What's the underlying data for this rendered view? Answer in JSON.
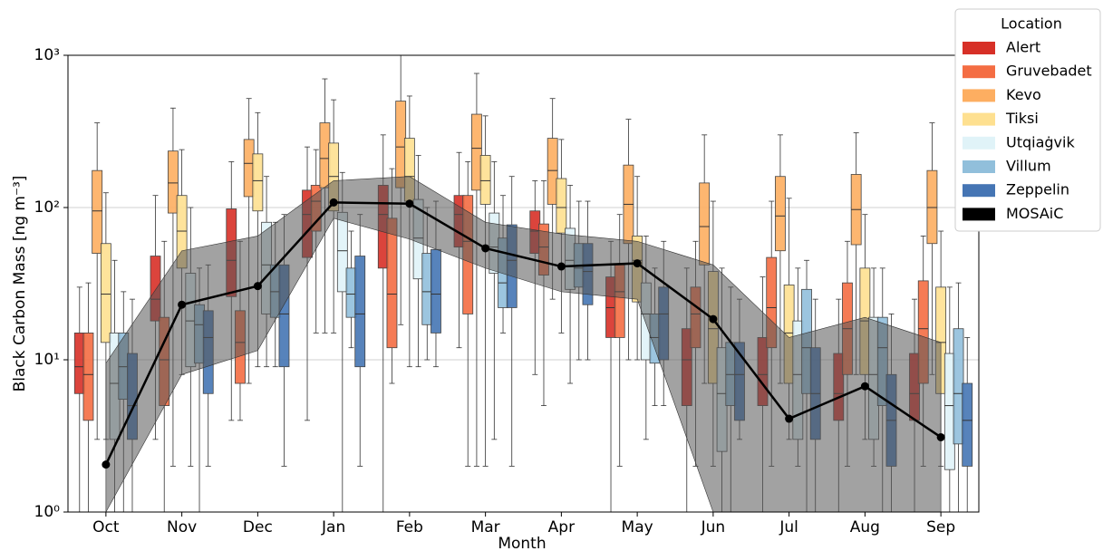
{
  "chart_data": {
    "type": "box",
    "xlabel": "Month",
    "ylabel": "Black Carbon Mass [ng m⁻³]",
    "categories": [
      "Oct",
      "Nov",
      "Dec",
      "Jan",
      "Feb",
      "Mar",
      "Apr",
      "May",
      "Jun",
      "Jul",
      "Aug",
      "Sep"
    ],
    "ylim": [
      1,
      1000
    ],
    "log_y": true,
    "grid": true,
    "yticks": [
      {
        "value": 1,
        "label": "10⁰"
      },
      {
        "value": 10,
        "label": "10¹"
      },
      {
        "value": 100,
        "label": "10²"
      },
      {
        "value": 1000,
        "label": "10³"
      }
    ],
    "legend_title": "Location",
    "legend": "outside-upper-right",
    "series": [
      {
        "name": "Alert",
        "type": "box",
        "color": "#d73027",
        "values": [
          [
            1,
            6,
            9,
            15,
            30
          ],
          [
            3,
            18,
            25,
            48,
            120
          ],
          [
            4,
            26,
            45,
            98,
            200
          ],
          [
            4,
            47,
            90,
            130,
            250
          ],
          [
            1,
            40,
            90,
            140,
            300
          ],
          [
            12,
            55,
            90,
            120,
            230
          ],
          [
            8,
            50,
            70,
            95,
            150
          ],
          [
            1,
            14,
            22,
            35,
            60
          ],
          [
            1,
            5,
            10,
            16,
            40
          ],
          [
            1,
            5,
            8,
            14,
            35
          ],
          [
            1,
            4,
            6,
            11,
            25
          ],
          [
            1,
            4,
            6,
            11,
            25
          ]
        ]
      },
      {
        "name": "Gruvebadet",
        "type": "box",
        "color": "#f46d43",
        "values": [
          [
            1,
            4,
            8,
            15,
            32
          ],
          [
            1,
            5,
            10,
            19,
            60
          ],
          [
            4,
            7,
            13,
            21,
            60
          ],
          [
            15,
            70,
            110,
            140,
            240
          ],
          [
            7,
            12,
            27,
            85,
            180
          ],
          [
            2,
            20,
            60,
            120,
            200
          ],
          [
            5,
            36,
            55,
            78,
            150
          ],
          [
            2,
            14,
            28,
            42,
            90
          ],
          [
            2,
            12,
            20,
            30,
            60
          ],
          [
            2,
            12,
            22,
            47,
            110
          ],
          [
            2,
            8,
            16,
            32,
            60
          ],
          [
            2,
            7,
            16,
            33,
            65
          ]
        ]
      },
      {
        "name": "Kevo",
        "type": "box",
        "color": "#fdae61",
        "values": [
          [
            3,
            50,
            95,
            175,
            360
          ],
          [
            2,
            92,
            145,
            235,
            450
          ],
          [
            7,
            118,
            195,
            280,
            520
          ],
          [
            15,
            135,
            210,
            360,
            700
          ],
          [
            17,
            135,
            250,
            500,
            1000
          ],
          [
            2,
            130,
            245,
            410,
            760
          ],
          [
            25,
            105,
            175,
            285,
            520
          ],
          [
            10,
            58,
            105,
            190,
            380
          ],
          [
            7,
            42,
            75,
            145,
            300
          ],
          [
            7,
            52,
            88,
            160,
            300
          ],
          [
            8,
            57,
            97,
            165,
            310
          ],
          [
            8,
            58,
            100,
            175,
            360
          ]
        ]
      },
      {
        "name": "Tiksi",
        "type": "box",
        "color": "#fee090",
        "values": [
          [
            3,
            13,
            27,
            58,
            125
          ],
          [
            8,
            40,
            70,
            120,
            240
          ],
          [
            9,
            95,
            150,
            225,
            420
          ],
          [
            15,
            95,
            160,
            265,
            510
          ],
          [
            9,
            110,
            160,
            285,
            540
          ],
          [
            2,
            105,
            150,
            220,
            400
          ],
          [
            15,
            68,
            100,
            155,
            280
          ],
          [
            10,
            24,
            45,
            65,
            160
          ],
          [
            2,
            7,
            16,
            38,
            110
          ],
          [
            3,
            7,
            15,
            31,
            115
          ],
          [
            3,
            8,
            18,
            40,
            90
          ],
          [
            2,
            6,
            13,
            30,
            70
          ]
        ]
      },
      {
        "name": "Utqiaġvik",
        "type": "box",
        "color": "#e0f3f8",
        "values": [
          [
            1,
            3,
            7,
            15,
            45
          ],
          [
            2,
            9,
            18,
            37,
            100
          ],
          [
            9,
            20,
            42,
            80,
            160
          ],
          [
            1,
            28,
            52,
            93,
            170
          ],
          [
            9,
            34,
            63,
            113,
            220
          ],
          [
            3,
            37,
            55,
            92,
            200
          ],
          [
            7,
            29,
            45,
            73,
            140
          ],
          [
            3,
            10,
            20,
            32,
            65
          ],
          [
            1,
            2.5,
            6,
            12,
            40
          ],
          [
            2,
            3,
            8,
            18,
            40
          ],
          [
            2,
            3,
            8,
            19,
            40
          ],
          [
            1,
            1.9,
            5,
            11,
            30
          ]
        ]
      },
      {
        "name": "Villum",
        "type": "box",
        "color": "#91bfdb",
        "values": [
          [
            1,
            5.5,
            9,
            15,
            28
          ],
          [
            1,
            9.5,
            17,
            23,
            40
          ],
          [
            9,
            19,
            28,
            42,
            80
          ],
          [
            12,
            19,
            27,
            40,
            70
          ],
          [
            10,
            17,
            28,
            50,
            100
          ],
          [
            15,
            22,
            32,
            63,
            120
          ],
          [
            10,
            30,
            40,
            58,
            110
          ],
          [
            5,
            9.5,
            14,
            20,
            40
          ],
          [
            1,
            5,
            8,
            13,
            30
          ],
          [
            1,
            6,
            12,
            29,
            45
          ],
          [
            1,
            5,
            12,
            19,
            40
          ],
          [
            1,
            2.8,
            6,
            16,
            32
          ]
        ]
      },
      {
        "name": "Zeppelin",
        "type": "box",
        "color": "#4575b4",
        "values": [
          [
            1,
            3,
            5,
            11,
            25
          ],
          [
            2,
            6,
            14,
            21,
            42
          ],
          [
            2,
            9,
            20,
            42,
            90
          ],
          [
            2,
            9,
            20,
            48,
            90
          ],
          [
            9,
            15,
            27,
            53,
            110
          ],
          [
            2,
            22,
            45,
            77,
            160
          ],
          [
            10,
            23,
            38,
            58,
            110
          ],
          [
            5,
            10,
            20,
            30,
            60
          ],
          [
            3,
            4,
            8,
            13,
            25
          ],
          [
            1,
            3,
            6,
            12,
            25
          ],
          [
            1,
            2,
            4,
            8,
            20
          ],
          [
            1,
            2,
            4,
            7,
            14
          ]
        ]
      },
      {
        "name": "MOSAiC",
        "type": "line",
        "color": "#000000",
        "values": [
          2.05,
          23,
          30.5,
          108,
          106,
          54,
          41,
          43,
          18.5,
          4.1,
          6.7,
          3.1
        ],
        "upper": [
          9.5,
          52,
          65,
          150,
          160,
          80,
          67,
          60,
          42,
          14,
          19,
          13
        ],
        "lower": [
          1,
          8,
          11.5,
          85,
          62,
          40,
          28,
          25,
          1,
          1,
          1,
          1
        ]
      }
    ]
  }
}
